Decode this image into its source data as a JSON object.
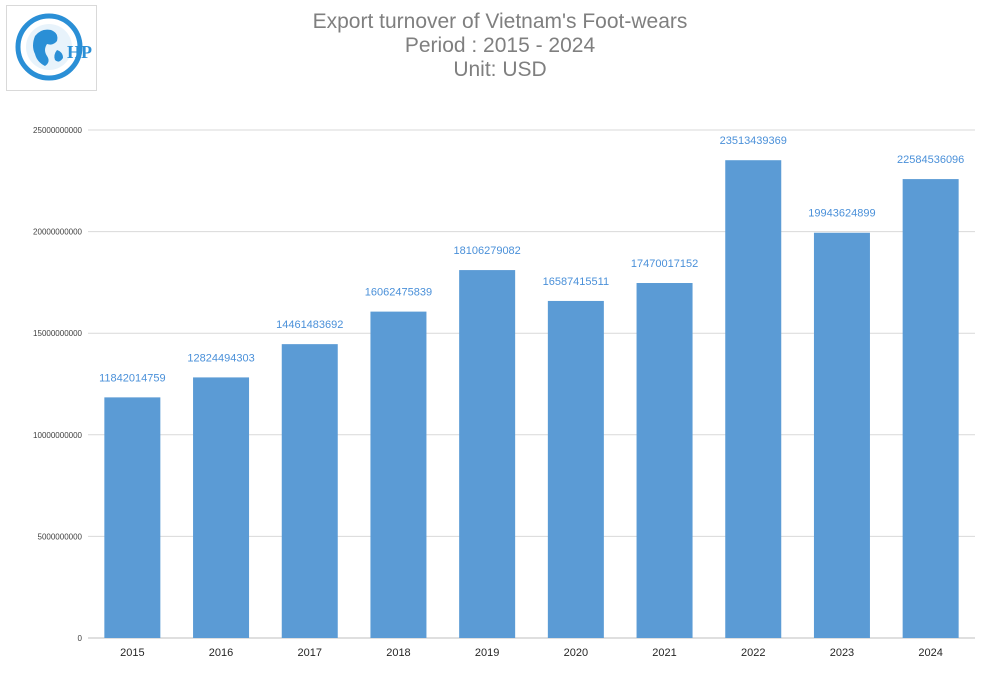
{
  "colors": {
    "bar": "#5b9bd5",
    "grid": "#d9d9d9",
    "axis": "#bfbfbf",
    "data_label": "#4a90d9",
    "title": "#7f7f7f"
  },
  "logo": {
    "text": "HP",
    "icon": "globe-logo-icon"
  },
  "chart_data": {
    "type": "bar",
    "title_lines": [
      "Export turnover of Vietnam's Foot-wears",
      "Period : 2015 - 2024",
      "Unit: USD"
    ],
    "categories": [
      "2015",
      "2016",
      "2017",
      "2018",
      "2019",
      "2020",
      "2021",
      "2022",
      "2023",
      "2024"
    ],
    "values": [
      11842014759,
      12824494303,
      14461483692,
      16062475839,
      18106279082,
      16587415511,
      17470017152,
      23513439369,
      19943624899,
      22584536096
    ],
    "value_labels": [
      "11842014759",
      "12824494303",
      "14461483692",
      "16062475839",
      "18106279082",
      "16587415511",
      "17470017152",
      "23513439369",
      "19943624899",
      "22584536096"
    ],
    "y_ticks": [
      0,
      5000000000,
      10000000000,
      15000000000,
      20000000000,
      25000000000
    ],
    "y_tick_labels": [
      "0",
      "5000000000",
      "10000000000",
      "15000000000",
      "20000000000",
      "25000000000"
    ],
    "ylim": [
      0,
      25000000000
    ],
    "grid": true,
    "legend": "none"
  }
}
